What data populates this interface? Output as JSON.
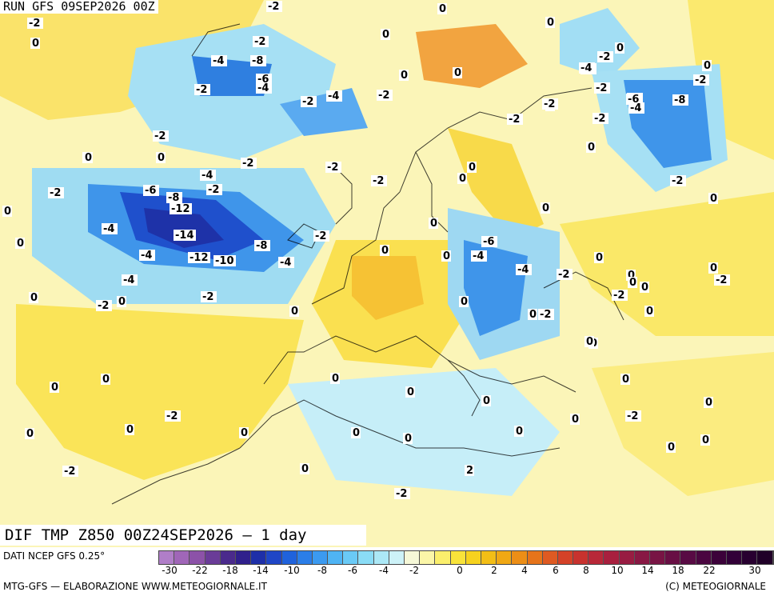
{
  "header": {
    "run": "RUN GFS 09SEP2026 00Z",
    "title": "DIF TMP Z850 00Z24SEP2026 — 1 day"
  },
  "footer": {
    "data_source": "DATI NCEP GFS 0.25°",
    "credits_left": "MTG-GFS — ELABORAZIONE WWW.METEOGIORNALE.IT",
    "credits_right": "(C) METEOGIORNALE"
  },
  "legend": {
    "colors": [
      "#b07ec8",
      "#a066b8",
      "#8c52a8",
      "#6a3c98",
      "#4a2a8c",
      "#30208c",
      "#1e2fa8",
      "#1f46c6",
      "#1f62dc",
      "#2b7ee8",
      "#3b9af0",
      "#4fb4f4",
      "#6acaf6",
      "#8adcf6",
      "#ace8f6",
      "#cdf2f8",
      "#f6f8d8",
      "#fbf6a8",
      "#fbef6c",
      "#f8e33a",
      "#f6d21e",
      "#f3be16",
      "#f0a814",
      "#ec8e16",
      "#e6741a",
      "#de5a22",
      "#d44228",
      "#c8322e",
      "#b82838",
      "#a8203e",
      "#981c42",
      "#881844",
      "#781444",
      "#680f44",
      "#580a44",
      "#4a0640",
      "#3c023a",
      "#320038",
      "#280030",
      "#200028"
    ],
    "ticks": [
      "-30",
      "-22",
      "-18",
      "-14",
      "-10",
      "-8",
      "-6",
      "-4",
      "-2",
      "0",
      "2",
      "4",
      "6",
      "8",
      "10",
      "14",
      "18",
      "22",
      "30"
    ]
  },
  "contour_labels": [
    "-2",
    "0",
    "-2",
    "0",
    "0",
    "-2",
    "-4",
    "-8",
    "-6",
    "-4",
    "-2",
    "-2",
    "0",
    "-4",
    "-2",
    "0",
    "0",
    "-2",
    "0",
    "-2",
    "-4",
    "0",
    "-4",
    "-2",
    "-6",
    "-8",
    "-4",
    "-2",
    "0",
    "-2",
    "0",
    "0",
    "-2",
    "-2",
    "-4",
    "-6",
    "-8",
    "-12",
    "-2",
    "-2",
    "-14",
    "-8",
    "-4",
    "-12",
    "-10",
    "-4",
    "-4",
    "-2",
    "0",
    "-2",
    "-4",
    "0",
    "0",
    "-6",
    "-4",
    "-4",
    "-2",
    "-2",
    "0",
    "0",
    "0",
    "-2",
    "0",
    "-2",
    "0",
    "0",
    "0",
    "0",
    "0",
    "0",
    "-2",
    "-2",
    "-2",
    "0",
    "0",
    "-2",
    "0",
    "0",
    "0",
    "0",
    "0",
    "0",
    "0",
    "-2",
    "0",
    "-2",
    "0",
    "0",
    "0",
    "0",
    "0",
    "0",
    "0",
    "0",
    "0",
    "0",
    "-2",
    "0",
    "-2",
    "0",
    "0",
    "0",
    "0",
    "0",
    "0",
    "0",
    "-2",
    "-2",
    "2"
  ],
  "map_colors": {
    "background": "#fbf5b8",
    "yellow": "#fae85a",
    "orange": "#f2b33c",
    "light_blue": "#9fdcf2",
    "blue": "#3f95ea",
    "deep_blue": "#1f50cc"
  }
}
